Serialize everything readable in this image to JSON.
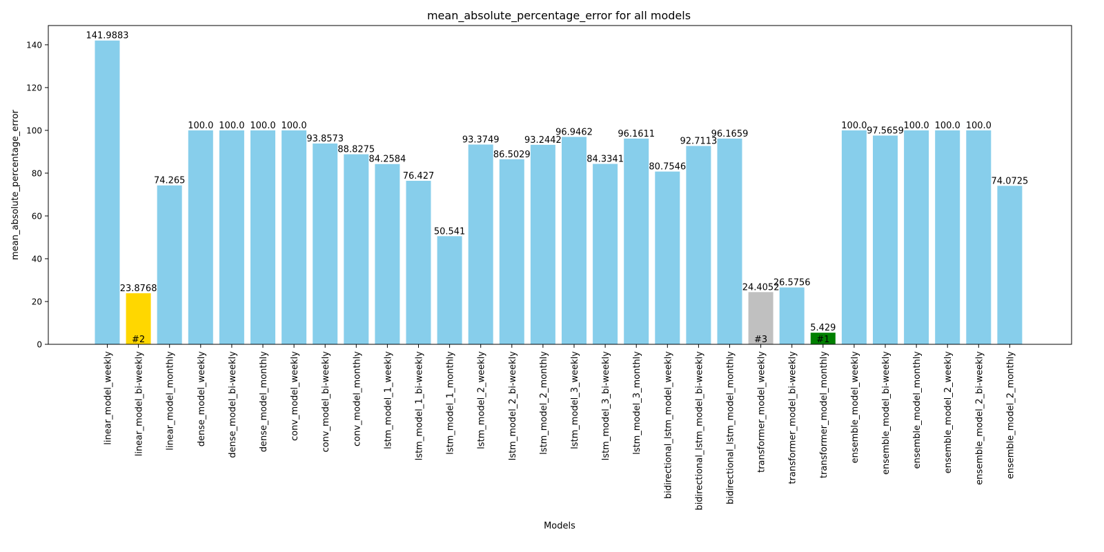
{
  "chart_data": {
    "type": "bar",
    "title": "mean_absolute_percentage_error for all models",
    "xlabel": "Models",
    "ylabel": "mean_absolute_percentage_error",
    "ylim": [
      0,
      149
    ],
    "yticks": [
      0,
      20,
      40,
      60,
      80,
      100,
      120,
      140
    ],
    "grid": false,
    "categories": [
      "linear_model_weekly",
      "linear_model_bi-weekly",
      "linear_model_monthly",
      "dense_model_weekly",
      "dense_model_bi-weekly",
      "dense_model_monthly",
      "conv_model_weekly",
      "conv_model_bi-weekly",
      "conv_model_monthly",
      "lstm_model_1_weekly",
      "lstm_model_1_bi-weekly",
      "lstm_model_1_monthly",
      "lstm_model_2_weekly",
      "lstm_model_2_bi-weekly",
      "lstm_model_2_monthly",
      "lstm_model_3_weekly",
      "lstm_model_3_bi-weekly",
      "lstm_model_3_monthly",
      "bidirectional_lstm_model_weekly",
      "bidirectional_lstm_model_bi-weekly",
      "bidirectional_lstm_model_monthly",
      "transformer_model_weekly",
      "transformer_model_bi-weekly",
      "transformer_model_monthly",
      "ensemble_model_weekly",
      "ensemble_model_bi-weekly",
      "ensemble_model_monthly",
      "ensemble_model_2_weekly",
      "ensemble_model_2_bi-weekly",
      "ensemble_model_2_monthly"
    ],
    "values": [
      141.9883,
      23.8768,
      74.265,
      100.0,
      100.0,
      100.0,
      100.0,
      93.8573,
      88.8275,
      84.2584,
      76.427,
      50.541,
      93.3749,
      86.5029,
      93.2442,
      96.9462,
      84.3341,
      96.1611,
      80.7546,
      92.7113,
      96.1659,
      24.4052,
      26.5756,
      5.429,
      100.0,
      97.5659,
      100.0,
      100.0,
      100.0,
      74.0725
    ],
    "data_labels": [
      "141.9883",
      "23.8768",
      "74.265",
      "100.0",
      "100.0",
      "100.0",
      "100.0",
      "93.8573",
      "88.8275",
      "84.2584",
      "76.427",
      "50.541",
      "93.3749",
      "86.5029",
      "93.2442",
      "96.9462",
      "84.3341",
      "96.1611",
      "80.7546",
      "92.7113",
      "96.1659",
      "24.4052",
      "26.5756",
      "5.429",
      "100.0",
      "97.5659",
      "100.0",
      "100.0",
      "100.0",
      "74.0725"
    ],
    "default_color": "#87ceeb",
    "highlights": [
      {
        "index": 23,
        "rank_label": "#1",
        "color": "#008000"
      },
      {
        "index": 1,
        "rank_label": "#2",
        "color": "#ffd700"
      },
      {
        "index": 21,
        "rank_label": "#3",
        "color": "#c0c0c0"
      }
    ]
  }
}
